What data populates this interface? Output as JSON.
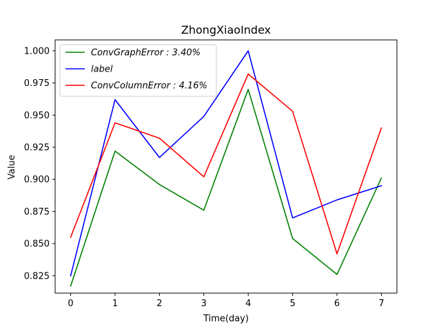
{
  "chart_data": {
    "type": "line",
    "title": "ZhongXiaoIndex",
    "xlabel": "Time(day)",
    "ylabel": "Value",
    "x": [
      0,
      1,
      2,
      3,
      4,
      5,
      6,
      7
    ],
    "xlim": [
      -0.35,
      7.35
    ],
    "ylim": [
      0.8115,
      1.0085
    ],
    "xticks": [
      0,
      1,
      2,
      3,
      4,
      5,
      6,
      7
    ],
    "yticks": [
      0.825,
      0.85,
      0.875,
      0.9,
      0.925,
      0.95,
      0.975,
      1.0
    ],
    "ytick_labels": [
      "0.825",
      "0.850",
      "0.875",
      "0.900",
      "0.925",
      "0.950",
      "0.975",
      "1.000"
    ],
    "grid": false,
    "legend_position": "top-left",
    "series": [
      {
        "name": "ConvGraphError : 3.40%",
        "color": "#008000",
        "values": [
          0.817,
          0.922,
          0.896,
          0.876,
          0.97,
          0.854,
          0.826,
          0.901
        ]
      },
      {
        "name": "label",
        "color": "#0000ff",
        "values": [
          0.825,
          0.962,
          0.917,
          0.949,
          1.0,
          0.87,
          0.884,
          0.895
        ]
      },
      {
        "name": "ConvColumnError : 4.16%",
        "color": "#ff0000",
        "values": [
          0.855,
          0.944,
          0.932,
          0.902,
          0.982,
          0.953,
          0.842,
          0.94
        ]
      }
    ]
  }
}
